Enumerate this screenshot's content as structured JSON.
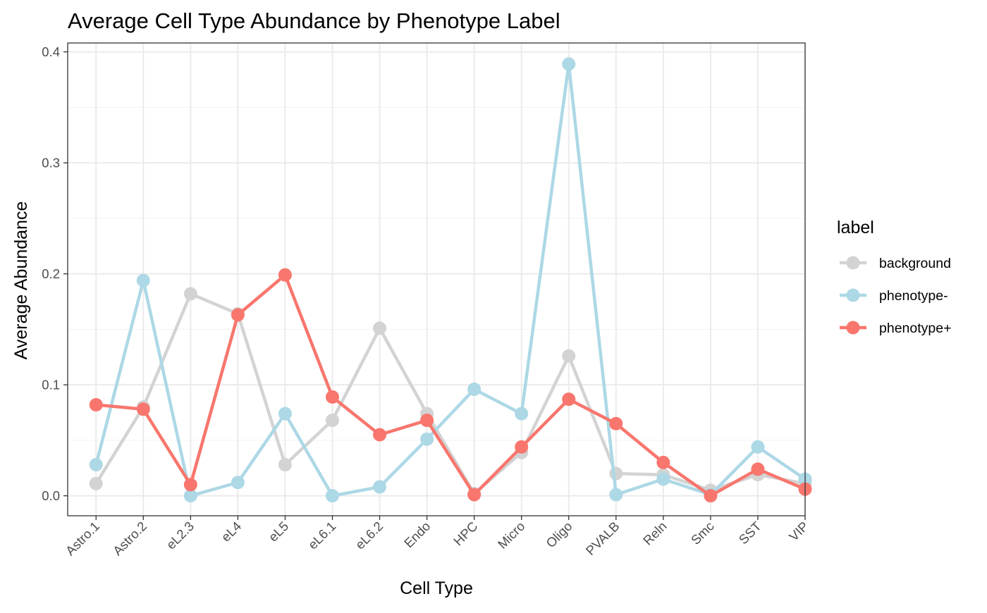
{
  "chart_data": {
    "type": "line",
    "title": "Average Cell Type Abundance by Phenotype Label",
    "xlabel": "Cell Type",
    "ylabel": "Average Abundance",
    "categories": [
      "Astro.1",
      "Astro.2",
      "eL2.3",
      "eL4",
      "eL5",
      "eL6.1",
      "eL6.2",
      "Endo",
      "HPC",
      "Micro",
      "Oligo",
      "PVALB",
      "Reln",
      "Smc",
      "SST",
      "VIP"
    ],
    "ylim": [
      -0.018,
      0.408
    ],
    "yticks": [
      0.0,
      0.1,
      0.2,
      0.3,
      0.4
    ],
    "ytick_labels": [
      "0.0",
      "0.1",
      "0.2",
      "0.3",
      "0.4"
    ],
    "grid": true,
    "legend": {
      "title": "label",
      "position": "right"
    },
    "series": [
      {
        "name": "background",
        "color": "#d3d3d3",
        "values": [
          0.011,
          0.08,
          0.182,
          0.164,
          0.028,
          0.068,
          0.151,
          0.074,
          0.002,
          0.039,
          0.126,
          0.02,
          0.019,
          0.005,
          0.019,
          0.011
        ]
      },
      {
        "name": "phenotype-",
        "color": "#add8e6",
        "values": [
          0.028,
          0.194,
          0.0,
          0.012,
          0.074,
          0.0,
          0.008,
          0.051,
          0.096,
          0.074,
          0.389,
          0.001,
          0.015,
          0.001,
          0.044,
          0.015
        ]
      },
      {
        "name": "phenotype+",
        "color": "#f8766d",
        "values": [
          0.082,
          0.078,
          0.01,
          0.163,
          0.199,
          0.089,
          0.055,
          0.068,
          0.001,
          0.044,
          0.087,
          0.065,
          0.03,
          0.0,
          0.024,
          0.006
        ]
      }
    ]
  }
}
